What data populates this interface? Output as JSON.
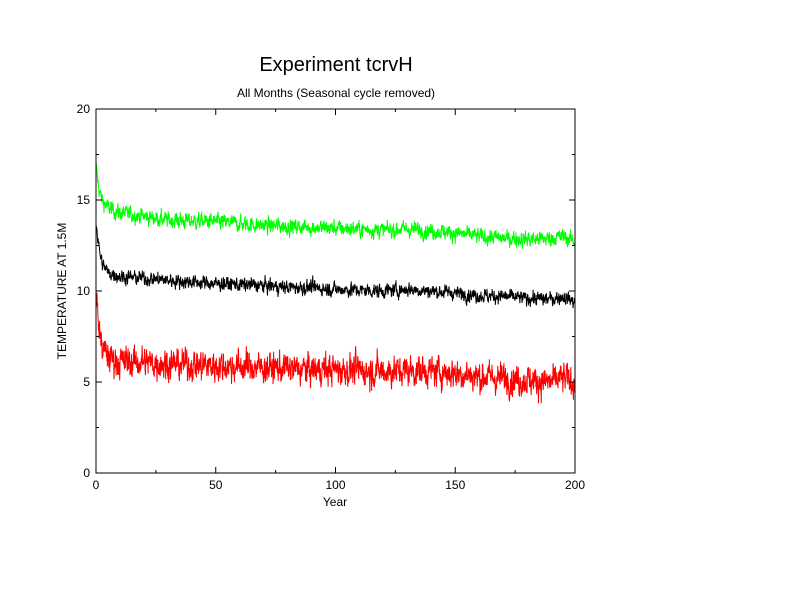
{
  "chart_data": {
    "type": "line",
    "title": "Experiment tcrvH",
    "subtitle": "All Months (Seasonal cycle removed)",
    "xlabel": "Year",
    "ylabel": "TEMPERATURE AT 1.5M",
    "xlim": [
      0,
      200
    ],
    "ylim": [
      0,
      20
    ],
    "xticks": [
      0,
      50,
      100,
      150,
      200
    ],
    "yticks": [
      0,
      5,
      10,
      15,
      20
    ],
    "grid": false,
    "legend": "none",
    "series": [
      {
        "color": "#00ff00",
        "x": [
          0,
          1,
          2,
          3,
          5,
          8,
          10,
          15,
          20,
          25,
          30,
          40,
          50,
          60,
          70,
          80,
          90,
          100,
          110,
          120,
          130,
          140,
          150,
          160,
          170,
          180,
          190,
          195,
          200
        ],
        "values": [
          16.8,
          15.8,
          15.2,
          14.9,
          14.6,
          14.4,
          14.3,
          14.2,
          14.1,
          14.0,
          13.9,
          13.85,
          13.8,
          13.7,
          13.6,
          13.55,
          13.5,
          13.45,
          13.4,
          13.35,
          13.4,
          13.3,
          13.2,
          13.0,
          12.9,
          12.85,
          12.9,
          13.0,
          12.7
        ]
      },
      {
        "color": "#000000",
        "x": [
          0,
          1,
          2,
          3,
          5,
          8,
          10,
          15,
          20,
          25,
          30,
          40,
          50,
          60,
          70,
          80,
          90,
          100,
          110,
          120,
          130,
          140,
          150,
          160,
          170,
          180,
          190,
          195,
          200
        ],
        "values": [
          13.8,
          12.6,
          11.8,
          11.4,
          11.0,
          10.9,
          10.8,
          10.75,
          10.7,
          10.65,
          10.6,
          10.5,
          10.4,
          10.35,
          10.3,
          10.2,
          10.2,
          10.1,
          10.05,
          10.0,
          10.1,
          10.0,
          9.9,
          9.75,
          9.7,
          9.6,
          9.55,
          9.7,
          9.4
        ]
      },
      {
        "color": "#ff0000",
        "x": [
          0,
          1,
          2,
          3,
          5,
          8,
          10,
          15,
          20,
          25,
          30,
          40,
          50,
          60,
          70,
          80,
          90,
          100,
          110,
          120,
          130,
          140,
          150,
          160,
          170,
          180,
          190,
          195,
          200
        ],
        "values": [
          10.0,
          8.2,
          7.3,
          6.8,
          6.4,
          6.2,
          6.15,
          6.1,
          6.1,
          6.05,
          6.0,
          5.95,
          5.9,
          5.85,
          5.8,
          5.75,
          5.7,
          5.7,
          5.65,
          5.6,
          5.65,
          5.6,
          5.5,
          5.3,
          5.2,
          5.1,
          5.0,
          5.2,
          5.0
        ]
      }
    ]
  }
}
